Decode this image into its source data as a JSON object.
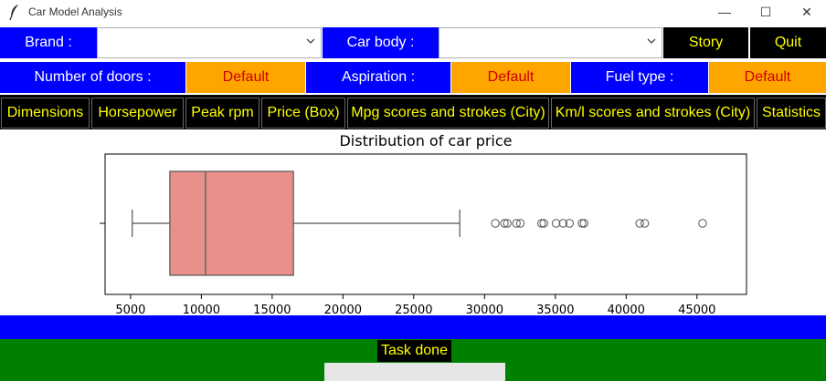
{
  "window": {
    "title": "Car Model Analysis",
    "min_symbol": "—",
    "max_symbol": "☐",
    "close_symbol": "✕"
  },
  "filters": {
    "brand_label": "Brand :",
    "brand_value": "",
    "car_body_label": "Car body :",
    "car_body_value": "",
    "story_label": "Story",
    "quit_label": "Quit",
    "doors_label": "Number of doors :",
    "doors_value": "Default",
    "aspiration_label": "Aspiration :",
    "aspiration_value": "Default",
    "fuel_label": "Fuel type :",
    "fuel_value": "Default"
  },
  "tabs": [
    {
      "label": "Dimensions"
    },
    {
      "label": "Horsepower"
    },
    {
      "label": "Peak rpm"
    },
    {
      "label": "Price (Box)"
    },
    {
      "label": "Mpg scores and strokes (City)"
    },
    {
      "label": "Km/l scores and strokes (City)"
    },
    {
      "label": "Statistics"
    }
  ],
  "chart_data": {
    "type": "box",
    "title": "Distribution of  car price",
    "xlim": [
      3200,
      48500
    ],
    "xticks": [
      5000,
      10000,
      15000,
      20000,
      25000,
      30000,
      35000,
      40000,
      45000
    ],
    "tick_labels": [
      "5000",
      "10000",
      "15000",
      "20000",
      "25000",
      "30000",
      "35000",
      "40000",
      "45000"
    ],
    "box": {
      "whisker_low": 5118,
      "q1": 7775,
      "median": 10295,
      "q3": 16503,
      "whisker_high": 28248
    },
    "outliers": [
      30760,
      31400,
      31600,
      32250,
      32528,
      34028,
      34184,
      35056,
      35550,
      36000,
      36880,
      37028,
      40960,
      41315,
      45400
    ],
    "box_color": "#e8908a",
    "line_color": "#555555"
  },
  "status": {
    "text": "Task done"
  },
  "colors": {
    "blue": "#0000ff",
    "orange": "#ffa500",
    "black": "#000000",
    "yellow": "#ffff00",
    "green": "#008000"
  }
}
